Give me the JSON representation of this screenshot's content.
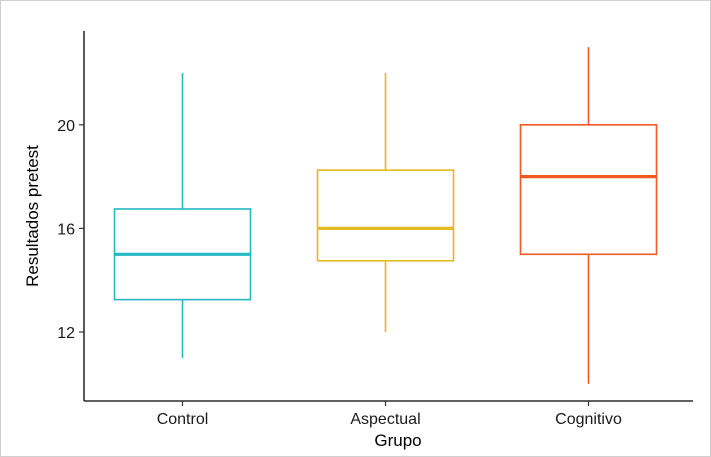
{
  "chart_data": {
    "type": "boxplot",
    "xlabel": "Grupo",
    "ylabel": "Resultados pretest",
    "ylim": [
      9.5,
      24
    ],
    "yticks": [
      12,
      16,
      20
    ],
    "grid": false,
    "legend": "none",
    "categories": [
      "Control",
      "Aspectual",
      "Cognitivo"
    ],
    "boxes": [
      {
        "category": "Control",
        "whisker_low": 11,
        "q1": 13.25,
        "median": 15,
        "q3": 16.75,
        "whisker_high": 22,
        "color": "#26B8C4"
      },
      {
        "category": "Aspectual",
        "whisker_low": 12,
        "q1": 14.75,
        "median": 16,
        "q3": 18.25,
        "whisker_high": 22,
        "color": "#E2BB20"
      },
      {
        "category": "Cognitivo",
        "whisker_low": 10,
        "q1": 15,
        "median": 18,
        "q3": 20,
        "whisker_high": 23,
        "color": "#EF5A22"
      }
    ]
  }
}
